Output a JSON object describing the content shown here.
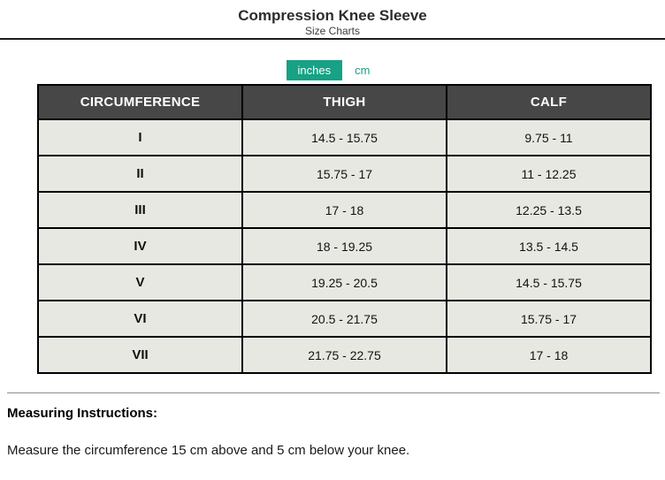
{
  "header": {
    "title": "Compression Knee Sleeve",
    "subtitle": "Size Charts"
  },
  "unit_toggle": {
    "options": [
      "inches",
      "cm"
    ],
    "active": "inches",
    "accent_color": "#17a185"
  },
  "size_table": {
    "columns": [
      "CIRCUMFERENCE",
      "THIGH",
      "CALF"
    ],
    "header_bg": "#474747",
    "row_bg": "#e8e8e3",
    "rows": [
      {
        "size": "I",
        "thigh": "14.5 - 15.75",
        "calf": "9.75 - 11"
      },
      {
        "size": "II",
        "thigh": "15.75 - 17",
        "calf": "11 - 12.25"
      },
      {
        "size": "III",
        "thigh": "17 - 18",
        "calf": "12.25 - 13.5"
      },
      {
        "size": "IV",
        "thigh": "18 - 19.25",
        "calf": "13.5 - 14.5"
      },
      {
        "size": "V",
        "thigh": "19.25 - 20.5",
        "calf": "14.5 - 15.75"
      },
      {
        "size": "VI",
        "thigh": "20.5 - 21.75",
        "calf": "15.75 - 17"
      },
      {
        "size": "VII",
        "thigh": "21.75 - 22.75",
        "calf": "17 - 18"
      }
    ]
  },
  "instructions": {
    "heading": "Measuring Instructions:",
    "body": "Measure the circumference 15 cm above and 5 cm below your knee."
  }
}
